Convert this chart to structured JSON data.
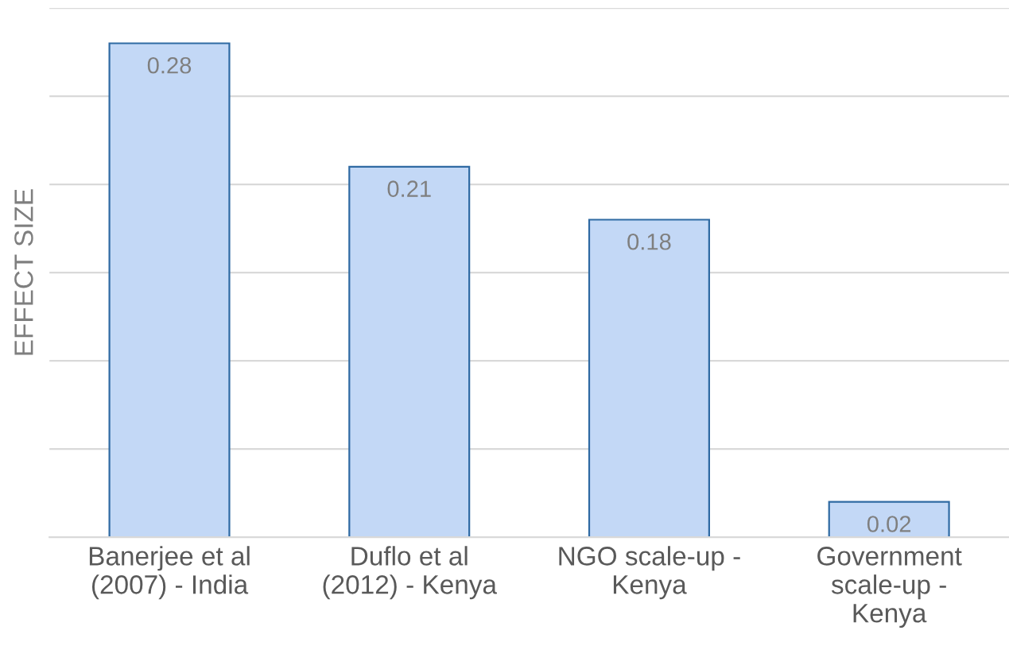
{
  "chart_data": {
    "type": "bar",
    "ylabel": "EFFECT SIZE",
    "categories": [
      "Banerjee et al\n(2007) - India",
      "Duflo et al\n(2012) - Kenya",
      "NGO scale-up -\nKenya",
      "Government\nscale-up -\nKenya"
    ],
    "values": [
      0.28,
      0.21,
      0.18,
      0.02
    ],
    "color": "#c3d8f6",
    "ylim": [
      0,
      0.3
    ],
    "yticks": [
      {
        "value": 0,
        "label": null
      },
      {
        "value": 0.05,
        "label": null
      },
      {
        "value": 0.1,
        "label": null
      },
      {
        "value": 0.15,
        "label": null
      },
      {
        "value": 0.2,
        "label": null
      },
      {
        "value": 0.25,
        "label": null
      },
      {
        "value": 0.3,
        "label": null
      }
    ],
    "tick_labels": "x",
    "grid": "y",
    "data_labels": true
  }
}
